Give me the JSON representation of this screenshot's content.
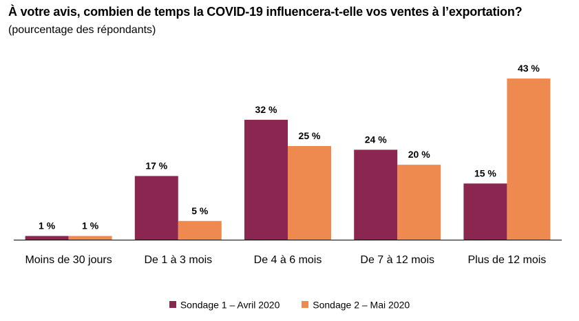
{
  "chart_data": {
    "type": "bar",
    "title": "À votre avis, combien de temps la COVID-19 influencera-t-elle vos ventes à l’exportation?",
    "subtitle": "(pourcentage des répondants)",
    "categories": [
      "Moins de 30 jours",
      "De 1 à 3 mois",
      "De 4 à 6 mois",
      "De 7 à 12 mois",
      "Plus de 12 mois"
    ],
    "series": [
      {
        "name": "Sondage 1 – Avril 2020",
        "values": [
          1,
          17,
          32,
          24,
          15
        ],
        "labels": [
          "1 %",
          "17 %",
          "32 %",
          "24 %",
          "15 %"
        ],
        "color": "#8b2650"
      },
      {
        "name": "Sondage 2 – Mai 2020",
        "values": [
          1,
          5,
          25,
          20,
          43
        ],
        "labels": [
          "1 %",
          "5 %",
          "25 %",
          "20 %",
          "43 %"
        ],
        "color": "#ee8a50"
      }
    ],
    "ylim": [
      0,
      43
    ],
    "grid": false,
    "legend_position": "bottom"
  }
}
